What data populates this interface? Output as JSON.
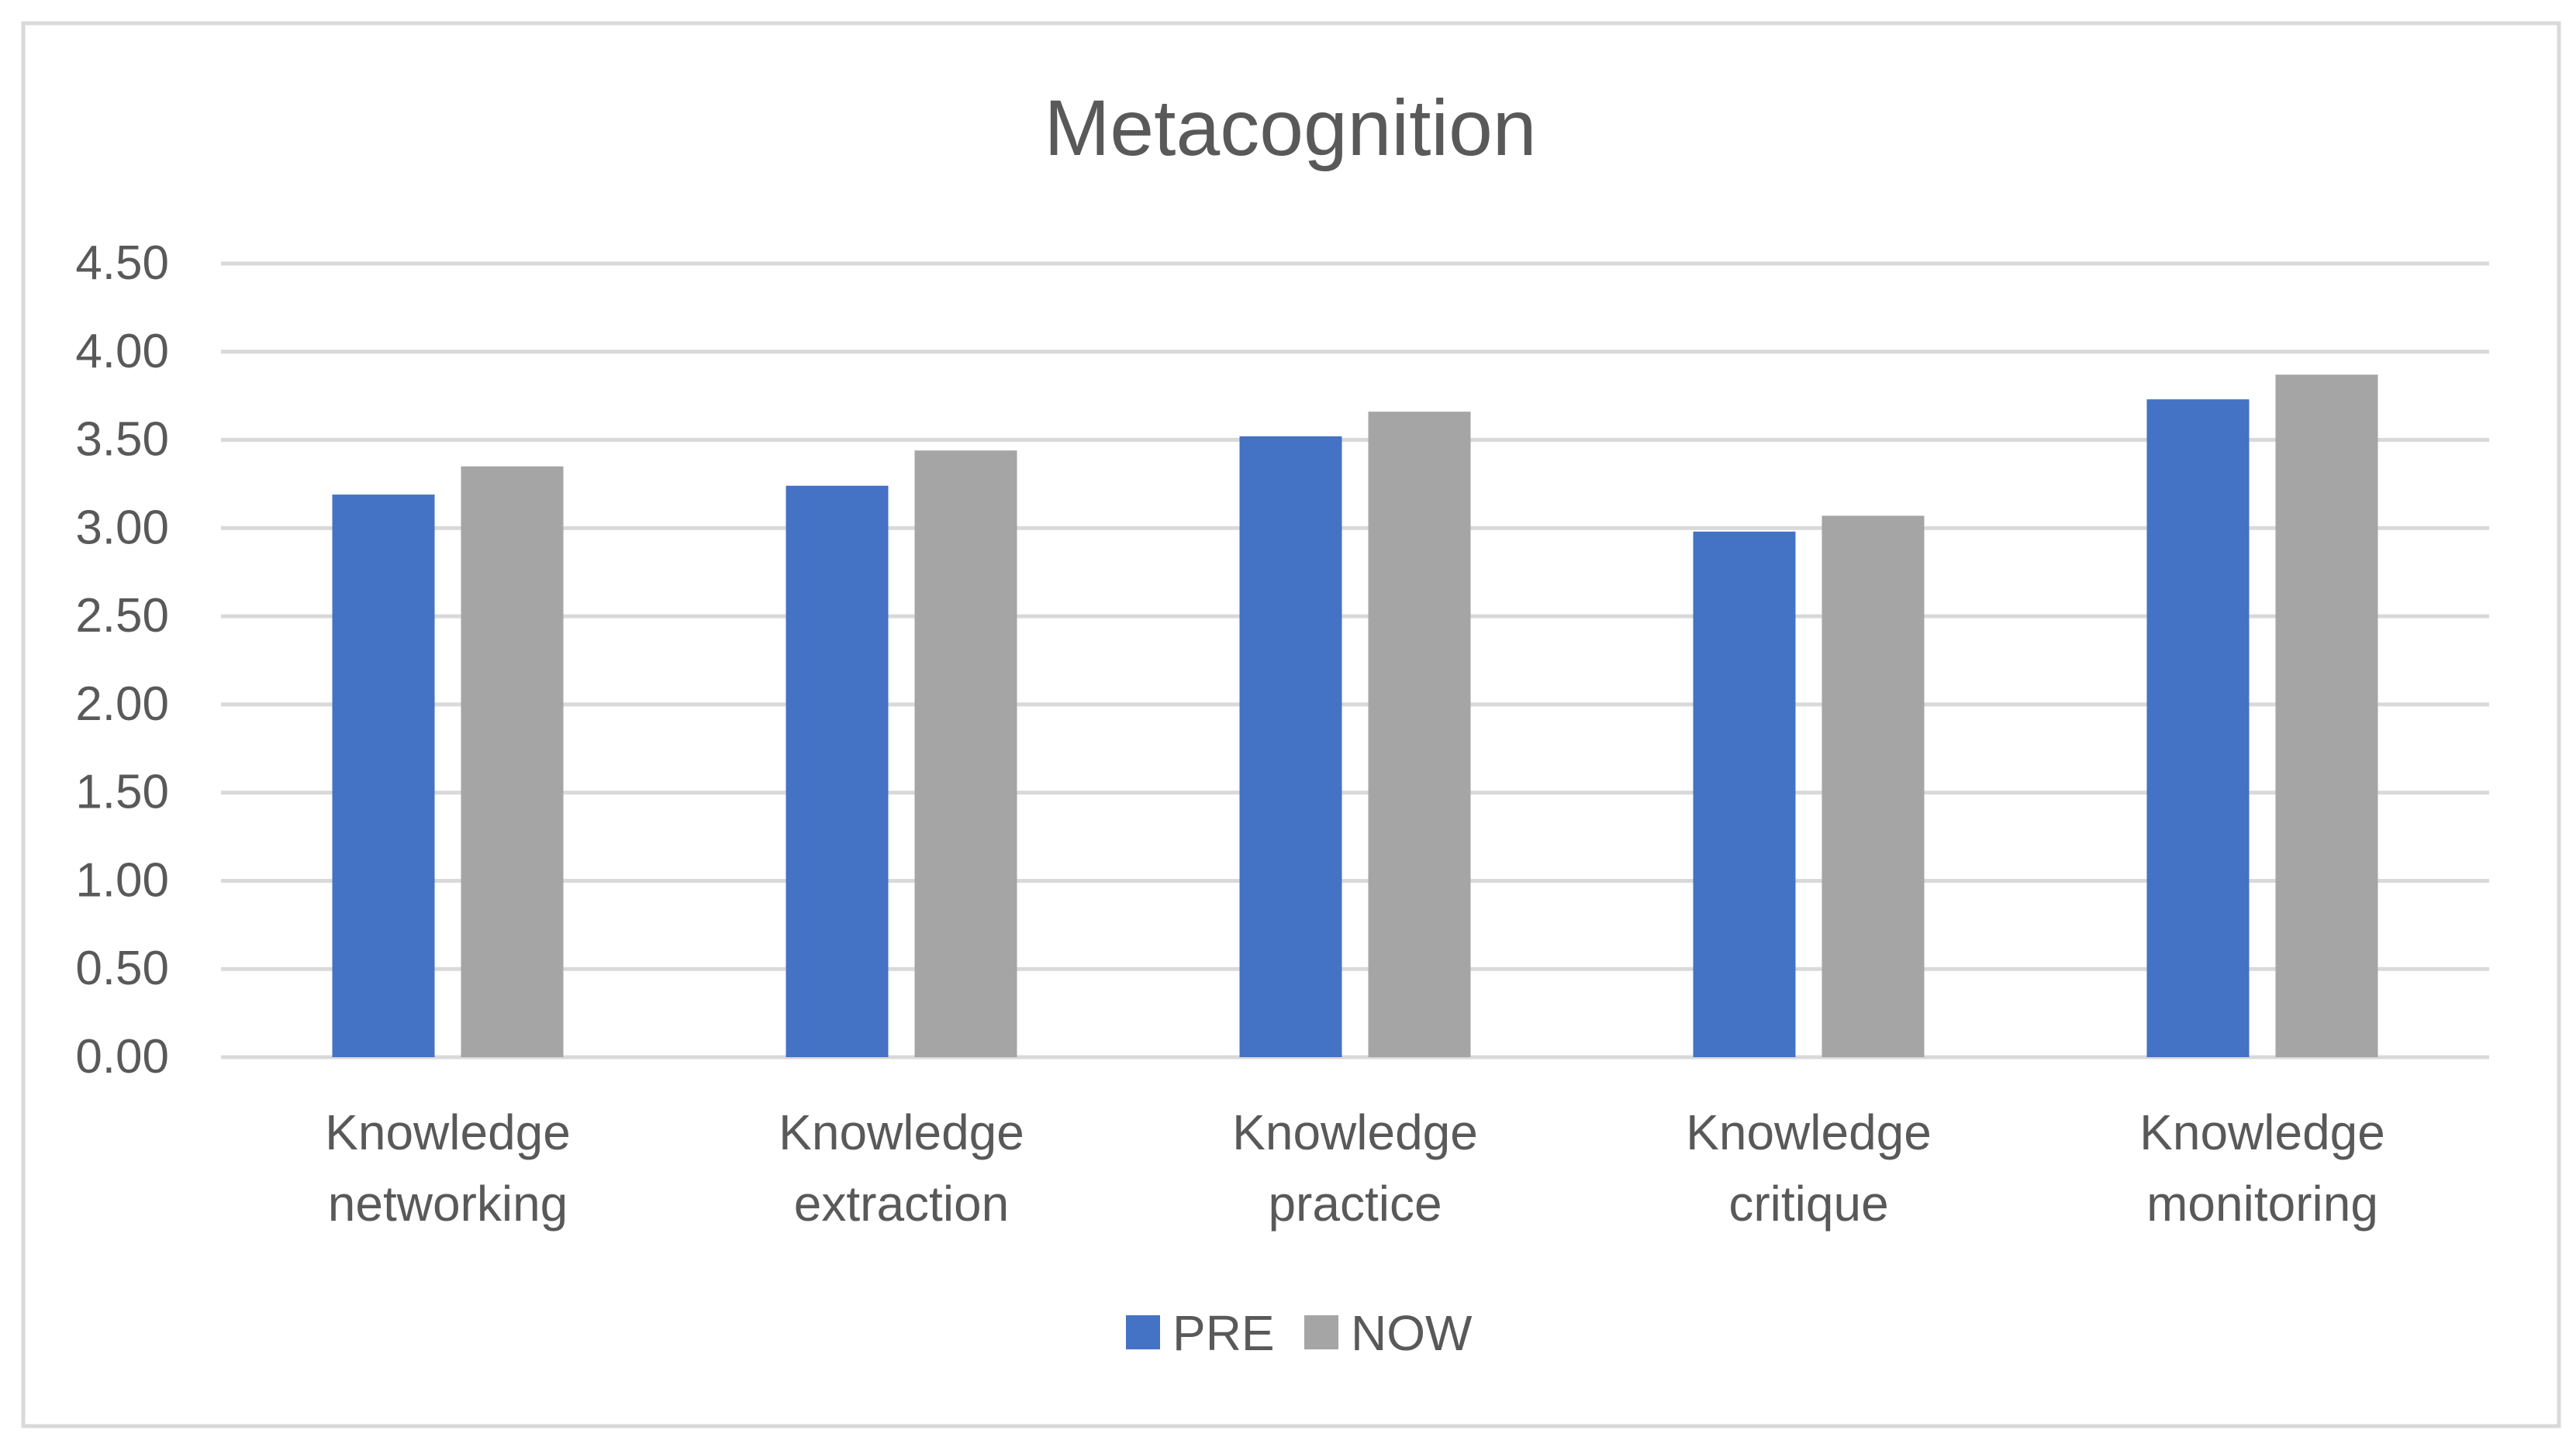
{
  "chart_data": {
    "type": "bar",
    "title": "Metacognition",
    "categories": [
      [
        "Knowledge",
        "networking"
      ],
      [
        "Knowledge",
        "extraction"
      ],
      [
        "Knowledge",
        "practice"
      ],
      [
        "Knowledge",
        "critique"
      ],
      [
        "Knowledge",
        "monitoring"
      ]
    ],
    "series": [
      {
        "name": "PRE",
        "color": "#4472C4",
        "values": [
          3.19,
          3.24,
          3.52,
          2.98,
          3.73
        ]
      },
      {
        "name": "NOW",
        "color": "#A5A5A5",
        "values": [
          3.35,
          3.44,
          3.66,
          3.07,
          3.87
        ]
      }
    ],
    "yticks": [
      "0.00",
      "0.50",
      "1.00",
      "1.50",
      "2.00",
      "2.50",
      "3.00",
      "3.50",
      "4.00",
      "4.50"
    ],
    "ylim": [
      0,
      4.5
    ],
    "xlabel": "",
    "ylabel": "",
    "grid": true,
    "legend_position": "bottom"
  }
}
